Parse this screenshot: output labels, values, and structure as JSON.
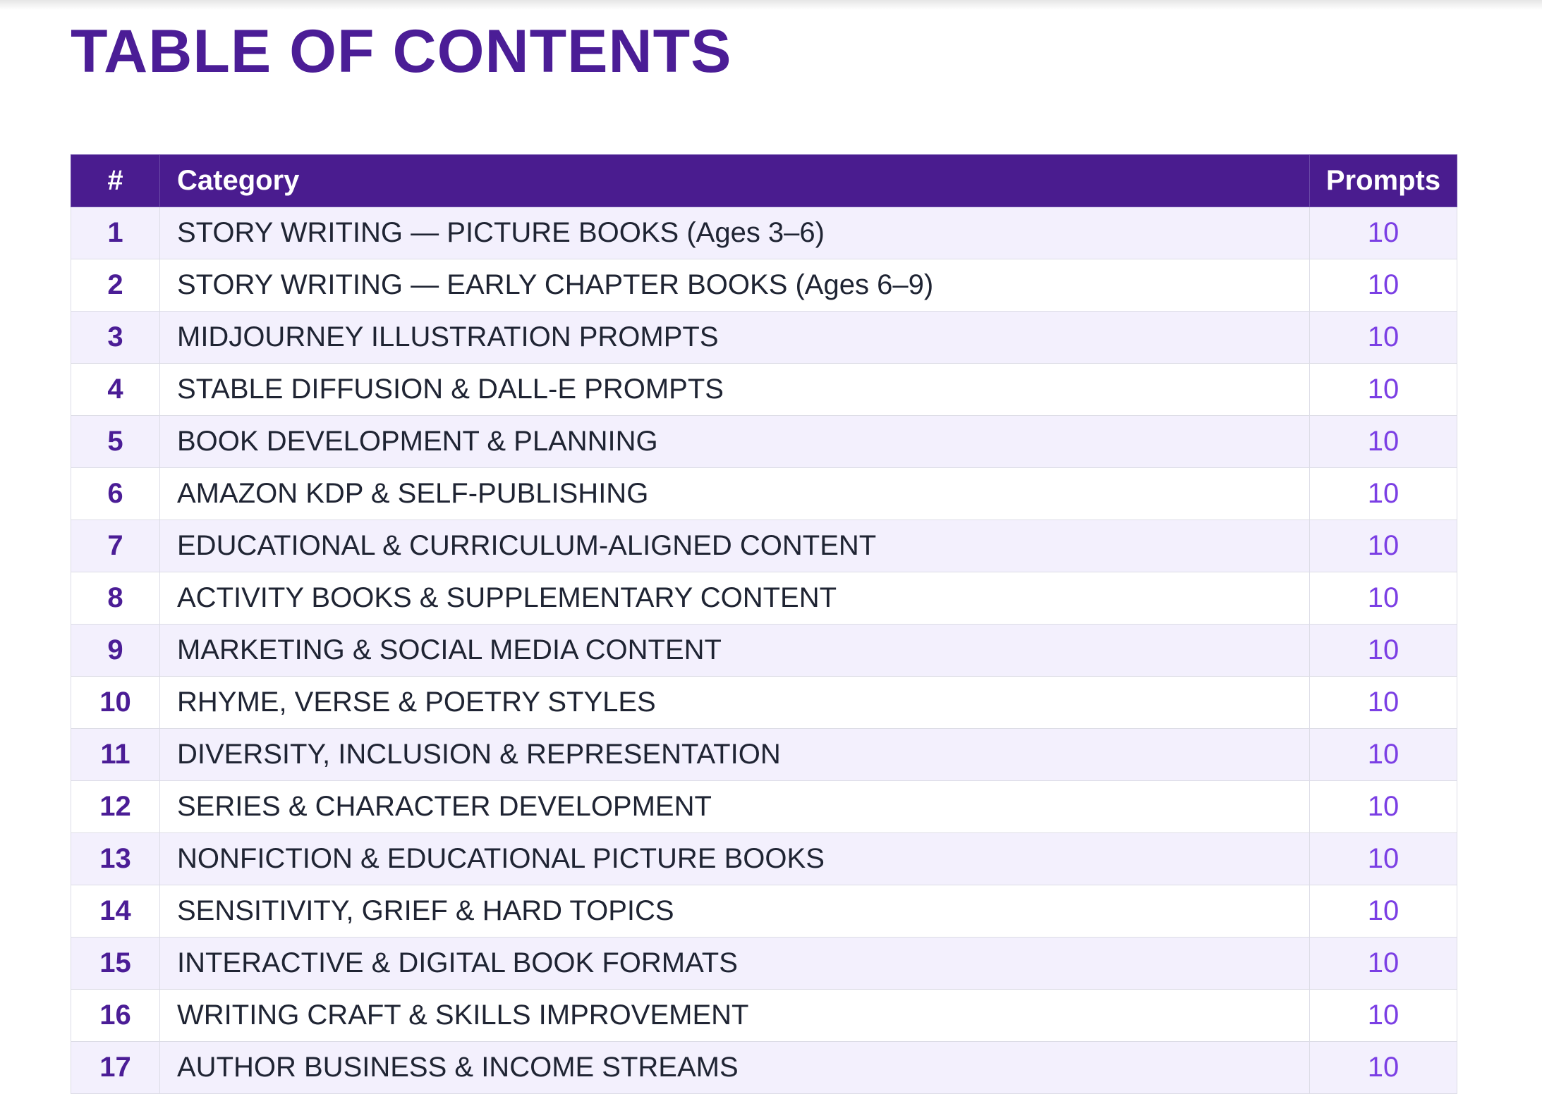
{
  "header": {
    "title": "TABLE OF CONTENTS"
  },
  "table": {
    "columns": [
      "#",
      "Category",
      "Prompts"
    ],
    "rows": [
      [
        1,
        "STORY WRITING — PICTURE BOOKS (Ages 3–6)",
        10
      ],
      [
        2,
        "STORY WRITING — EARLY CHAPTER BOOKS (Ages 6–9)",
        10
      ],
      [
        3,
        "MIDJOURNEY ILLUSTRATION PROMPTS",
        10
      ],
      [
        4,
        "STABLE DIFFUSION & DALL-E PROMPTS",
        10
      ],
      [
        5,
        "BOOK DEVELOPMENT & PLANNING",
        10
      ],
      [
        6,
        "AMAZON KDP & SELF-PUBLISHING",
        10
      ],
      [
        7,
        "EDUCATIONAL & CURRICULUM-ALIGNED CONTENT",
        10
      ],
      [
        8,
        "ACTIVITY BOOKS & SUPPLEMENTARY CONTENT",
        10
      ],
      [
        9,
        "MARKETING & SOCIAL MEDIA CONTENT",
        10
      ],
      [
        10,
        "RHYME, VERSE & POETRY STYLES",
        10
      ],
      [
        11,
        "DIVERSITY, INCLUSION & REPRESENTATION",
        10
      ],
      [
        12,
        "SERIES & CHARACTER DEVELOPMENT",
        10
      ],
      [
        13,
        "NONFICTION & EDUCATIONAL PICTURE BOOKS",
        10
      ],
      [
        14,
        "SENSITIVITY, GRIEF & HARD TOPICS",
        10
      ],
      [
        15,
        "INTERACTIVE & DIGITAL BOOK FORMATS",
        10
      ],
      [
        16,
        "WRITING CRAFT & SKILLS IMPROVEMENT",
        10
      ],
      [
        17,
        "AUTHOR BUSINESS & INCOME STREAMS",
        10
      ]
    ]
  }
}
